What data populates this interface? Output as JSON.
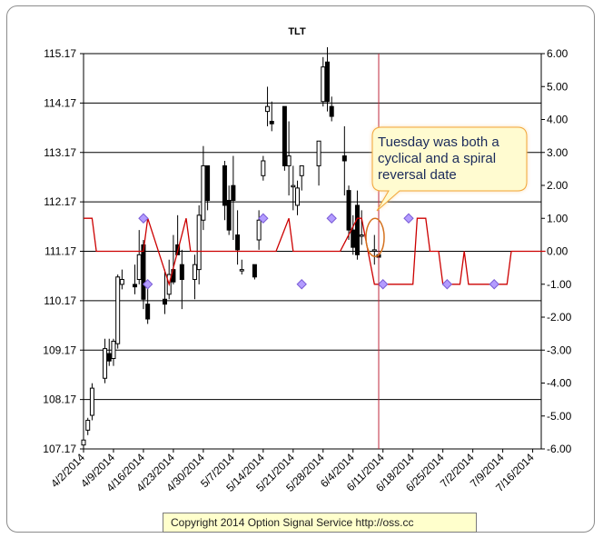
{
  "chart_data": {
    "type": "candlestick",
    "title": "TLT",
    "left_axis": {
      "ylim": [
        107.17,
        115.17
      ],
      "ticks": [
        "115.17",
        "114.17",
        "113.17",
        "112.17",
        "111.17",
        "110.17",
        "109.17",
        "108.17",
        "107.17"
      ]
    },
    "right_axis": {
      "ylim": [
        -6,
        6
      ],
      "ticks": [
        "6.00",
        "5.00",
        "4.00",
        "3.00",
        "2.00",
        "1.00",
        "0.00",
        "-1.00",
        "-2.00",
        "-3.00",
        "-4.00",
        "-5.00",
        "-6.00"
      ]
    },
    "x_axis": {
      "tick_labels": [
        "4/2/2014",
        "4/9/2014",
        "4/16/2014",
        "4/23/2014",
        "4/30/2014",
        "5/7/2014",
        "5/14/2014",
        "5/21/2014",
        "5/28/2014",
        "6/4/2014",
        "6/11/2014",
        "6/18/2014",
        "6/25/2014",
        "7/2/2014",
        "7/9/2014",
        "7/16/2014"
      ]
    },
    "grid": "horizontal",
    "candles": [
      {
        "date": "4/2/2014",
        "open": 107.25,
        "high": 107.45,
        "low": 107.17,
        "close": 107.35
      },
      {
        "date": "4/3/2014",
        "open": 107.55,
        "high": 107.8,
        "low": 107.45,
        "close": 107.75
      },
      {
        "date": "4/4/2014",
        "open": 107.85,
        "high": 108.5,
        "low": 107.75,
        "close": 108.4
      },
      {
        "date": "4/7/2014",
        "open": 108.6,
        "high": 109.4,
        "low": 108.5,
        "close": 109.2
      },
      {
        "date": "4/8/2014",
        "open": 109.1,
        "high": 109.4,
        "low": 108.85,
        "close": 108.95
      },
      {
        "date": "4/9/2014",
        "open": 109.0,
        "high": 109.4,
        "low": 108.85,
        "close": 109.35
      },
      {
        "date": "4/10/2014",
        "open": 109.3,
        "high": 110.7,
        "low": 109.2,
        "close": 110.65
      },
      {
        "date": "4/11/2014",
        "open": 110.5,
        "high": 110.8,
        "low": 110.4,
        "close": 110.6
      },
      {
        "date": "4/14/2014",
        "open": 110.5,
        "high": 110.9,
        "low": 110.3,
        "close": 110.45
      },
      {
        "date": "4/15/2014",
        "open": 110.6,
        "high": 111.6,
        "low": 110.5,
        "close": 111.1
      },
      {
        "date": "4/16/2014",
        "open": 111.3,
        "high": 111.4,
        "low": 110.0,
        "close": 110.2
      },
      {
        "date": "4/17/2014",
        "open": 110.1,
        "high": 110.5,
        "low": 109.7,
        "close": 109.8
      },
      {
        "date": "4/21/2014",
        "open": 110.2,
        "high": 110.8,
        "low": 109.9,
        "close": 110.1
      },
      {
        "date": "4/22/2014",
        "open": 110.3,
        "high": 111.0,
        "low": 110.2,
        "close": 110.7
      },
      {
        "date": "4/23/2014",
        "open": 110.8,
        "high": 111.5,
        "low": 110.5,
        "close": 110.55
      },
      {
        "date": "4/24/2014",
        "open": 111.3,
        "high": 111.9,
        "low": 111.1,
        "close": 111.1
      },
      {
        "date": "4/25/2014",
        "open": 110.9,
        "high": 111.2,
        "low": 110.0,
        "close": 110.6
      },
      {
        "date": "4/28/2014",
        "open": 110.6,
        "high": 111.1,
        "low": 110.2,
        "close": 110.9
      },
      {
        "date": "4/29/2014",
        "open": 110.8,
        "high": 112.1,
        "low": 110.5,
        "close": 111.9
      },
      {
        "date": "4/30/2014",
        "open": 111.8,
        "high": 113.3,
        "low": 111.6,
        "close": 112.9
      },
      {
        "date": "5/1/2014",
        "open": 112.9,
        "high": 112.9,
        "low": 112.0,
        "close": 112.2
      },
      {
        "date": "5/5/2014",
        "open": 112.9,
        "high": 113.0,
        "low": 111.8,
        "close": 112.1
      },
      {
        "date": "5/6/2014",
        "open": 112.2,
        "high": 112.5,
        "low": 111.5,
        "close": 111.6
      },
      {
        "date": "5/7/2014",
        "open": 112.5,
        "high": 113.1,
        "low": 111.4,
        "close": 112.2
      },
      {
        "date": "5/8/2014",
        "open": 111.5,
        "high": 112.0,
        "low": 110.9,
        "close": 111.2
      },
      {
        "date": "5/9/2014",
        "open": 110.8,
        "high": 111.0,
        "low": 110.7,
        "close": 110.8
      },
      {
        "date": "5/12/2014",
        "open": 110.9,
        "high": 110.9,
        "low": 110.6,
        "close": 110.65
      },
      {
        "date": "5/13/2014",
        "open": 111.4,
        "high": 112.0,
        "low": 111.2,
        "close": 111.8
      },
      {
        "date": "5/14/2014",
        "open": 112.7,
        "high": 113.1,
        "low": 112.6,
        "close": 113.0
      },
      {
        "date": "5/15/2014",
        "open": 114.0,
        "high": 114.5,
        "low": 113.7,
        "close": 114.1
      },
      {
        "date": "5/16/2014",
        "open": 113.8,
        "high": 114.2,
        "low": 113.6,
        "close": 113.75
      },
      {
        "date": "5/19/2014",
        "open": 114.1,
        "high": 114.1,
        "low": 112.8,
        "close": 112.9
      },
      {
        "date": "5/20/2014",
        "open": 112.9,
        "high": 113.8,
        "low": 112.3,
        "close": 113.1
      },
      {
        "date": "5/21/2014",
        "open": 112.5,
        "high": 112.9,
        "low": 112.0,
        "close": 112.5
      },
      {
        "date": "5/22/2014",
        "open": 112.1,
        "high": 112.6,
        "low": 111.9,
        "close": 112.45
      },
      {
        "date": "5/23/2014",
        "open": 112.7,
        "high": 112.9,
        "low": 112.4,
        "close": 112.9
      },
      {
        "date": "5/27/2014",
        "open": 112.9,
        "high": 113.4,
        "low": 112.5,
        "close": 113.4
      },
      {
        "date": "5/28/2014",
        "open": 114.2,
        "high": 115.1,
        "low": 114.1,
        "close": 114.9
      },
      {
        "date": "5/29/2014",
        "open": 115.0,
        "high": 115.3,
        "low": 114.0,
        "close": 114.2
      },
      {
        "date": "5/30/2014",
        "open": 114.1,
        "high": 114.3,
        "low": 113.8,
        "close": 113.9
      },
      {
        "date": "6/2/2014",
        "open": 113.1,
        "high": 113.7,
        "low": 112.3,
        "close": 113.0
      },
      {
        "date": "6/3/2014",
        "open": 112.4,
        "high": 112.5,
        "low": 111.4,
        "close": 111.6
      },
      {
        "date": "6/4/2014",
        "open": 111.6,
        "high": 111.9,
        "low": 111.1,
        "close": 111.25
      },
      {
        "date": "6/5/2014",
        "open": 112.1,
        "high": 112.4,
        "low": 111.0,
        "close": 111.1
      },
      {
        "date": "6/6/2014",
        "open": 111.5,
        "high": 112.0,
        "low": 111.3,
        "close": 111.5
      },
      {
        "date": "6/9/2014",
        "open": 111.2,
        "high": 111.5,
        "low": 110.9,
        "close": 111.2
      },
      {
        "date": "6/10/2014",
        "open": 111.1,
        "high": 111.3,
        "low": 110.9,
        "close": 111.05
      }
    ],
    "spiral_line_label": "",
    "spiral_line": [
      {
        "date": "4/2/2014",
        "value": 1
      },
      {
        "date": "4/4/2014",
        "value": 1
      },
      {
        "date": "4/5/2014",
        "value": 0
      },
      {
        "date": "4/16/2014",
        "value": 0
      },
      {
        "date": "4/17/2014",
        "value": 1
      },
      {
        "date": "4/22/2014",
        "value": -1
      },
      {
        "date": "4/24/2014",
        "value": 0
      },
      {
        "date": "4/26/2014",
        "value": 1
      },
      {
        "date": "4/27/2014",
        "value": 0
      },
      {
        "date": "5/17/2014",
        "value": 0
      },
      {
        "date": "5/20/2014",
        "value": 1
      },
      {
        "date": "5/21/2014",
        "value": 0
      },
      {
        "date": "6/1/2014",
        "value": 0
      },
      {
        "date": "6/5/2014",
        "value": 1
      },
      {
        "date": "6/6/2014",
        "value": 1
      },
      {
        "date": "6/9/2014",
        "value": -1
      },
      {
        "date": "6/18/2014",
        "value": -1
      },
      {
        "date": "6/19/2014",
        "value": 1
      },
      {
        "date": "6/21/2014",
        "value": 1
      },
      {
        "date": "6/22/2014",
        "value": 0
      },
      {
        "date": "6/24/2014",
        "value": 0
      },
      {
        "date": "6/25/2014",
        "value": -1
      },
      {
        "date": "6/29/2014",
        "value": -1
      },
      {
        "date": "6/30/2014",
        "value": 0
      },
      {
        "date": "7/1/2014",
        "value": -1
      },
      {
        "date": "7/10/2014",
        "value": -1
      },
      {
        "date": "7/11/2014",
        "value": 0
      },
      {
        "date": "7/19/2014",
        "value": 0
      }
    ],
    "cycle_markers": [
      {
        "date": "4/16/2014",
        "value": 1
      },
      {
        "date": "4/17/2014",
        "value": -1
      },
      {
        "date": "5/14/2014",
        "value": 1
      },
      {
        "date": "5/23/2014",
        "value": -1
      },
      {
        "date": "5/30/2014",
        "value": 1
      },
      {
        "date": "6/11/2014",
        "value": -1
      },
      {
        "date": "6/17/2014",
        "value": 1
      },
      {
        "date": "6/26/2014",
        "value": -1
      },
      {
        "date": "7/7/2014",
        "value": -1
      }
    ],
    "vertical_marker_date": "6/10/2014",
    "annotation": "Tuesday was both a cyclical and a spiral reversal date",
    "colors": {
      "spiral_line": "#cc0000",
      "marker_fill": "#b39cff",
      "marker_stroke": "#7a5cd6",
      "vline": "#c0283c",
      "callout_fill": "#fffbd0",
      "callout_stroke": "#f2a63a"
    }
  },
  "footer": {
    "copyright": "Copyright 2014 Option Signal Service http://oss.cc"
  }
}
